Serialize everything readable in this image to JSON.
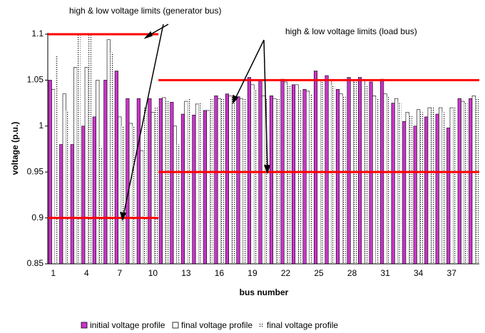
{
  "chart_data": {
    "type": "bar",
    "categories": [
      1,
      null,
      null,
      4,
      null,
      null,
      7,
      null,
      null,
      10,
      null,
      null,
      13,
      null,
      null,
      16,
      null,
      null,
      19,
      null,
      null,
      22,
      null,
      null,
      25,
      null,
      null,
      28,
      null,
      null,
      31,
      null,
      null,
      34,
      null,
      null,
      37,
      null,
      null
    ],
    "series": [
      {
        "name": "initial voltage profile",
        "color": "#cc33cc",
        "pattern": "solid",
        "values": [
          1.05,
          0.98,
          0.98,
          1.0,
          1.01,
          1.05,
          1.06,
          1.03,
          1.03,
          1.03,
          1.03,
          1.026,
          1.013,
          1.012,
          1.017,
          1.033,
          1.035,
          1.032,
          1.053,
          1.05,
          1.033,
          1.051,
          1.045,
          1.04,
          1.06,
          1.055,
          1.04,
          1.053,
          1.053,
          1.048,
          1.051,
          1.025,
          1.005,
          1.0,
          1.01,
          1.013,
          0.998,
          1.03,
          1.03
        ]
      },
      {
        "name": "final voltage profile",
        "color": "#ffffff",
        "pattern": "solid",
        "values": [
          1.04,
          1.035,
          1.064,
          1.064,
          1.05,
          1.094,
          1.01,
          1.003,
          0.973,
          1.015,
          1.031,
          1.0,
          1.027,
          1.024,
          1.017,
          1.03,
          1.033,
          1.03,
          1.045,
          1.033,
          1.03,
          1.048,
          1.045,
          1.038,
          1.05,
          1.05,
          1.035,
          1.05,
          1.05,
          1.033,
          1.035,
          1.03,
          1.015,
          1.018,
          1.02,
          1.02,
          1.02,
          1.027,
          1.033
        ]
      },
      {
        "name": "final voltage profile",
        "color": "#000000",
        "pattern": "dotted",
        "values": [
          1.077,
          1.017,
          1.1,
          1.1,
          0.977,
          1.08,
          1.0,
          1.0,
          1.02,
          1.02,
          1.028,
          0.98,
          1.03,
          1.025,
          1.03,
          1.03,
          1.033,
          1.03,
          1.04,
          1.03,
          1.03,
          1.045,
          1.04,
          1.035,
          1.05,
          1.045,
          1.033,
          1.048,
          1.045,
          1.03,
          1.032,
          1.025,
          1.012,
          1.015,
          1.02,
          1.015,
          1.02,
          1.025,
          1.03
        ]
      }
    ],
    "ylim": [
      0.85,
      1.1
    ],
    "yticks": [
      0.85,
      0.9,
      0.95,
      1,
      1.05,
      1.1
    ],
    "ylabel": "voltage (p.u.)",
    "xlabel": "bus number",
    "limit_color": "#ff0000",
    "limit_lines": [
      {
        "values": [
          0.9,
          1.1
        ],
        "from": 1,
        "to": 10
      },
      {
        "values": [
          0.95,
          1.05
        ],
        "from": 11,
        "to": 39
      }
    ],
    "annotations": [
      "high & low voltage limits (generator  bus)",
      "high & low voltage limits (load bus)"
    ]
  }
}
